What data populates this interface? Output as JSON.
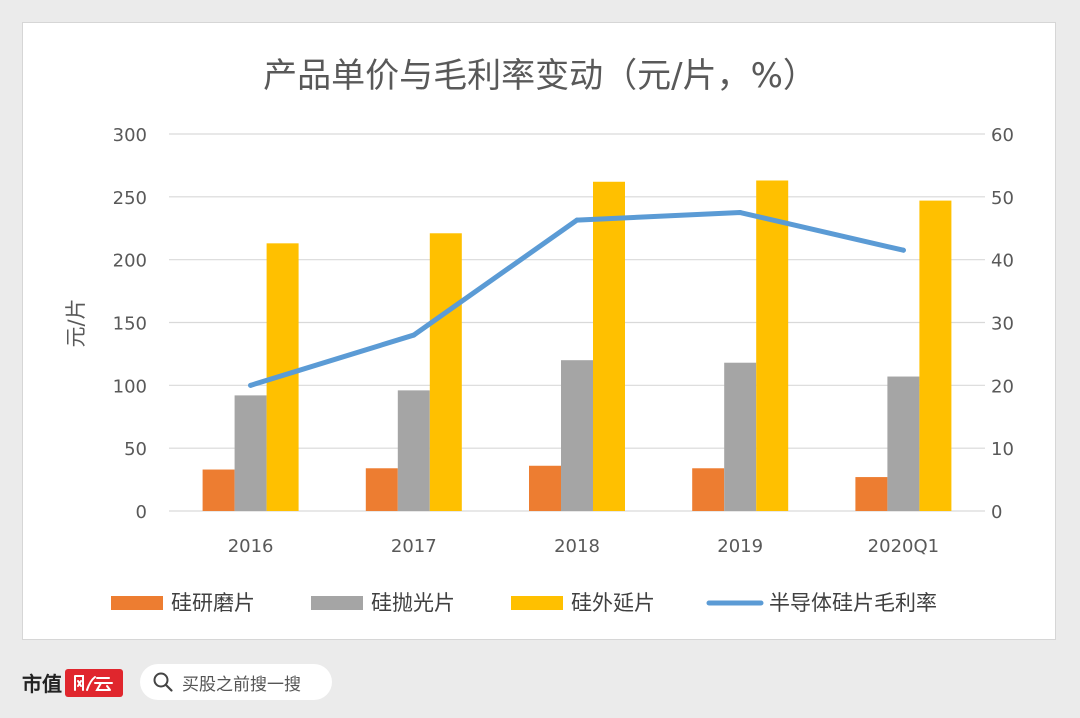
{
  "chart_data": {
    "type": "bar",
    "title": "产品单价与毛利率变动（元/片，%）",
    "ylabel": "元/片",
    "categories": [
      "2016",
      "2017",
      "2018",
      "2019",
      "2020Q1"
    ],
    "y_left": {
      "min": 0,
      "max": 300,
      "ticks": [
        "0",
        "50",
        "100",
        "150",
        "200",
        "250",
        "300"
      ]
    },
    "y_right": {
      "min": 0,
      "max": 60,
      "ticks": [
        "0",
        "10",
        "20",
        "30",
        "40",
        "50",
        "60"
      ]
    },
    "series": [
      {
        "name": "硅研磨片",
        "type": "bar",
        "axis": "left",
        "color": "#ed7d31",
        "values": [
          33,
          34,
          36,
          34,
          27
        ]
      },
      {
        "name": "硅抛光片",
        "type": "bar",
        "axis": "left",
        "color": "#a5a5a5",
        "values": [
          92,
          96,
          120,
          118,
          107
        ]
      },
      {
        "name": "硅外延片",
        "type": "bar",
        "axis": "left",
        "color": "#ffc000",
        "values": [
          213,
          221,
          262,
          263,
          247
        ]
      },
      {
        "name": "半导体硅片毛利率",
        "type": "line",
        "axis": "right",
        "color": "#5b9bd5",
        "values": [
          20,
          28,
          46.3,
          47.5,
          41.5
        ]
      }
    ],
    "grid": true,
    "legend_position": "bottom"
  },
  "footer": {
    "brand": "市值",
    "brand_seal": "风云",
    "search_placeholder": "买股之前搜一搜"
  }
}
